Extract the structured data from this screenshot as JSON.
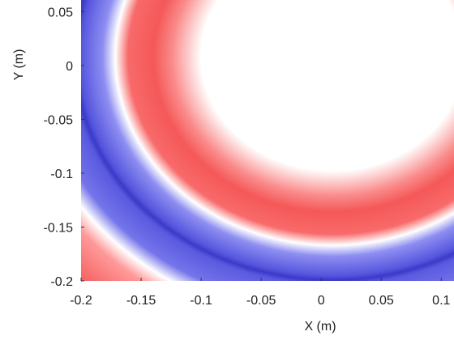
{
  "chart_data": {
    "type": "heatmap",
    "xlabel": "X (m)",
    "ylabel": "Y (m)",
    "xlim": [
      -0.2,
      0.1106
    ],
    "ylim": [
      -0.2,
      0.0608
    ],
    "xticks": [
      -0.2,
      -0.15,
      -0.1,
      -0.05,
      0,
      0.05,
      0.1
    ],
    "yticks": [
      -0.2,
      -0.15,
      -0.1,
      -0.05,
      0,
      0.05
    ]
  }
}
